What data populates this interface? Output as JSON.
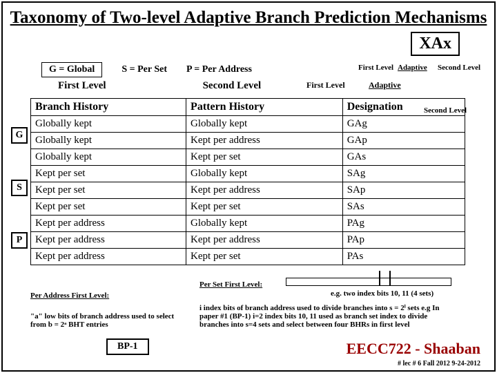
{
  "title": "Taxonomy of Two-level Adaptive Branch Prediction Mechanisms",
  "xax": "XAx",
  "legend": {
    "g": "G = Global",
    "s": "S = Per Set",
    "p": "P = Per Address"
  },
  "labels": {
    "first_level": "First Level",
    "second_level": "Second Level",
    "adaptive": "Adaptive"
  },
  "table": {
    "headers": [
      "Branch History",
      "Pattern History",
      "Designation"
    ],
    "rows": [
      [
        "Globally kept",
        "Globally kept",
        "GAg"
      ],
      [
        "Globally kept",
        "Kept per address",
        "GAp"
      ],
      [
        "Globally kept",
        "Kept per set",
        "GAs"
      ],
      [
        "Kept per set",
        "Globally kept",
        "SAg"
      ],
      [
        "Kept per set",
        "Kept per address",
        "SAp"
      ],
      [
        "Kept per set",
        "Kept per set",
        "SAs"
      ],
      [
        "Kept per address",
        "Globally kept",
        "PAg"
      ],
      [
        "Kept per address",
        "Kept per address",
        "PAp"
      ],
      [
        "Kept per address",
        "Kept per set",
        "PAs"
      ]
    ]
  },
  "side": [
    "G",
    "S",
    "P"
  ],
  "per_addr": {
    "title": "Per Address First Level:",
    "text": "\"a\" low bits of branch address used to select from b = 2ᵃ BHT entries"
  },
  "bp1": "BP-1",
  "per_set": {
    "title": "Per Set First Level:",
    "text": "i index bits of branch address used to divide branches into s = 2ⁱ sets e.g In paper #1 (BP-1) i=2 index bits 10, 11 used as branch set index to divide branches into s=4 sets and select between four BHRs in first level"
  },
  "eg": "e.g. two index bits 10, 11 (4 sets)",
  "course": "EECC722 - Shaaban",
  "lect": "# lec # 6   Fall 2012   9-24-2012",
  "colors": {
    "border": "#000000",
    "bg": "#ffffff",
    "course": "#990000"
  }
}
